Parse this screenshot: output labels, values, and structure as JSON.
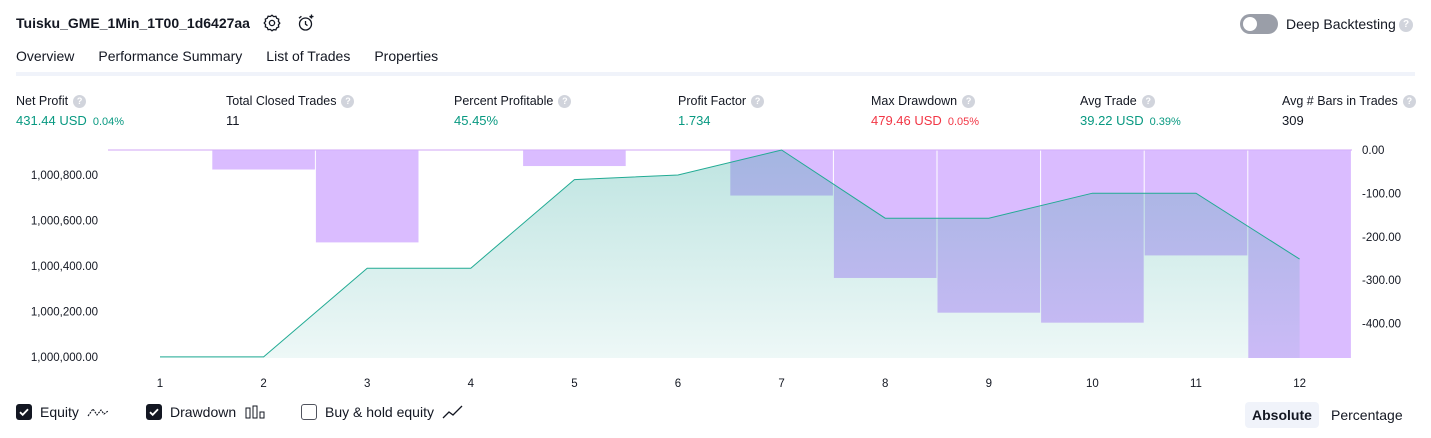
{
  "header": {
    "title": "Tuisku_GME_1Min_1T00_1d6427aa",
    "deep_backtesting_label": "Deep Backtesting",
    "help_glyph": "?"
  },
  "tabs": [
    {
      "label": "Overview",
      "active": true
    },
    {
      "label": "Performance Summary",
      "active": false
    },
    {
      "label": "List of Trades",
      "active": false
    },
    {
      "label": "Properties",
      "active": false
    }
  ],
  "metrics": [
    {
      "label": "Net Profit",
      "value": "431.44 USD",
      "pct": "0.04%",
      "color": "green"
    },
    {
      "label": "Total Closed Trades",
      "value": "11",
      "pct": "",
      "color": "dark"
    },
    {
      "label": "Percent Profitable",
      "value": "45.45%",
      "pct": "",
      "color": "green"
    },
    {
      "label": "Profit Factor",
      "value": "1.734",
      "pct": "",
      "color": "green"
    },
    {
      "label": "Max Drawdown",
      "value": "479.46 USD",
      "pct": "0.05%",
      "color": "red"
    },
    {
      "label": "Avg Trade",
      "value": "39.22 USD",
      "pct": "0.39%",
      "color": "green"
    },
    {
      "label": "Avg # Bars in Trades",
      "value": "309",
      "pct": "",
      "color": "dark"
    }
  ],
  "chart_data": {
    "type": "line",
    "x": [
      1,
      2,
      3,
      4,
      5,
      6,
      7,
      8,
      9,
      10,
      11,
      12
    ],
    "x_ticks": [
      "1",
      "2",
      "3",
      "4",
      "5",
      "6",
      "7",
      "8",
      "9",
      "10",
      "11",
      "12"
    ],
    "series": [
      {
        "kind": "line",
        "axis": "left",
        "values": [
          1000000,
          1000000,
          1000390,
          1000390,
          1000780,
          1000800,
          1000910,
          1000610,
          1000610,
          1000720,
          1000720,
          1000430
        ]
      },
      {
        "kind": "bar",
        "axis": "right",
        "values": [
          0,
          -45,
          -213,
          0,
          -37,
          0,
          -105,
          -295,
          -375,
          -398,
          -243,
          -479.46
        ]
      }
    ],
    "left_axis": {
      "ticks": [
        "1,000,000.00",
        "1,000,200.00",
        "1,000,400.00",
        "1,000,600.00",
        "1,000,800.00"
      ],
      "tick_values": [
        1000000,
        1000200,
        1000400,
        1000600,
        1000800
      ],
      "range": [
        999995,
        1000910
      ]
    },
    "right_axis": {
      "ticks": [
        "0.00",
        "-100.00",
        "-200.00",
        "-300.00",
        "-400.00"
      ],
      "tick_values": [
        0,
        -100,
        -200,
        -300,
        -400
      ],
      "range": [
        -479.46,
        0
      ]
    },
    "colors": {
      "equity_line": "#22ab94",
      "equity_fill": "#26a69a",
      "drawdown_fill": "#d4b0ff",
      "overlap": "#b6b9ed"
    }
  },
  "legend": {
    "items": [
      {
        "label": "Equity",
        "checked": true
      },
      {
        "label": "Drawdown",
        "checked": true
      },
      {
        "label": "Buy & hold equity",
        "checked": false
      }
    ],
    "modes": [
      {
        "label": "Absolute",
        "active": true
      },
      {
        "label": "Percentage",
        "active": false
      }
    ]
  }
}
